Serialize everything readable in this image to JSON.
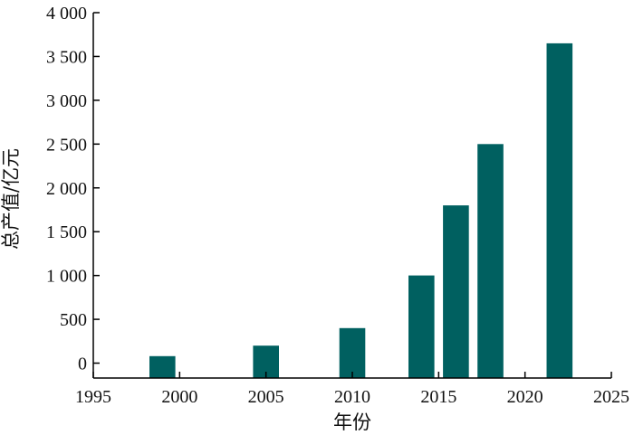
{
  "chart_data": {
    "type": "bar",
    "title": "",
    "xlabel": "年份",
    "ylabel": "总产值/亿元",
    "xlim": [
      1995,
      2025
    ],
    "ylim": [
      -170,
      4000
    ],
    "xticks": [
      1995,
      2000,
      2005,
      2010,
      2015,
      2020,
      2025
    ],
    "xtick_labels": [
      "1995",
      "2000",
      "2005",
      "2010",
      "2015",
      "2020",
      "2025"
    ],
    "yticks": [
      0,
      500,
      1000,
      1500,
      2000,
      2500,
      3000,
      3500,
      4000
    ],
    "ytick_labels": [
      "0",
      "500",
      "1 000",
      "1 500",
      "2 000",
      "2 500",
      "3 000",
      "3 500",
      "4 000"
    ],
    "bar_width": 1.5,
    "bar_color": "#006060",
    "grid": false,
    "legend": "none",
    "x": [
      1999,
      2005,
      2010,
      2014,
      2016,
      2018,
      2022
    ],
    "values": [
      80,
      200,
      400,
      1000,
      1800,
      2500,
      3650
    ]
  }
}
